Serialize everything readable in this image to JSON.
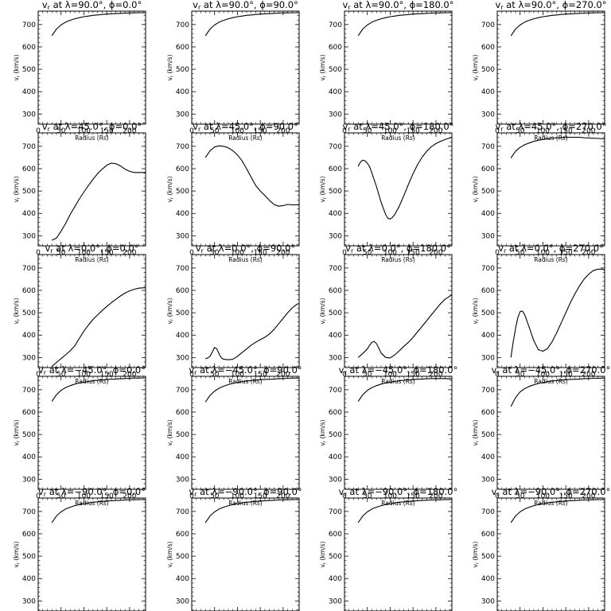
{
  "figure": {
    "xlabel": "Radius (Rs)",
    "ylabel": "v",
    "ylabel_sub": "r",
    "ylabel_unit": " (km/s)",
    "xticks": [
      0,
      50,
      100,
      150,
      200
    ],
    "yticks": [
      300,
      400,
      500,
      600,
      700
    ],
    "xlim": [
      0,
      235
    ],
    "ylim": [
      255,
      760
    ]
  },
  "chart_data": [
    {
      "type": "line",
      "title_lat": "90.0",
      "title_phi": "0.0",
      "x": [
        30,
        40,
        50,
        60,
        70,
        80,
        90,
        100,
        110,
        120,
        130,
        140,
        150,
        160,
        170,
        180,
        190,
        200,
        210,
        220,
        235
      ],
      "y": [
        650,
        680,
        698,
        711,
        719,
        726,
        731,
        735,
        738,
        741,
        743,
        745,
        747,
        748,
        749,
        750,
        751,
        752,
        752,
        753,
        753
      ]
    },
    {
      "type": "line",
      "title_lat": "90.0",
      "title_phi": "90.0",
      "x": [
        30,
        40,
        50,
        60,
        70,
        80,
        90,
        100,
        110,
        120,
        130,
        140,
        150,
        160,
        170,
        180,
        190,
        200,
        210,
        220,
        235
      ],
      "y": [
        650,
        680,
        698,
        711,
        719,
        726,
        731,
        735,
        738,
        741,
        743,
        745,
        747,
        748,
        749,
        750,
        751,
        752,
        752,
        753,
        753
      ]
    },
    {
      "type": "line",
      "title_lat": "90.0",
      "title_phi": "180.0",
      "x": [
        30,
        40,
        50,
        60,
        70,
        80,
        90,
        100,
        110,
        120,
        130,
        140,
        150,
        160,
        170,
        180,
        190,
        200,
        210,
        220,
        235
      ],
      "y": [
        650,
        680,
        698,
        711,
        719,
        726,
        731,
        735,
        738,
        741,
        743,
        745,
        747,
        748,
        749,
        750,
        751,
        752,
        752,
        753,
        753
      ]
    },
    {
      "type": "line",
      "title_lat": "90.0",
      "title_phi": "270.0",
      "x": [
        30,
        40,
        50,
        60,
        70,
        80,
        90,
        100,
        110,
        120,
        130,
        140,
        150,
        160,
        170,
        180,
        190,
        200,
        210,
        220,
        235
      ],
      "y": [
        650,
        680,
        698,
        711,
        719,
        726,
        731,
        735,
        738,
        741,
        743,
        745,
        747,
        748,
        749,
        750,
        751,
        752,
        752,
        753,
        753
      ]
    },
    {
      "type": "line",
      "title_lat": "45.0",
      "title_phi": "0.0",
      "x": [
        30,
        40,
        50,
        60,
        70,
        80,
        90,
        100,
        110,
        120,
        130,
        140,
        150,
        160,
        170,
        180,
        190,
        200,
        210,
        220,
        235
      ],
      "y": [
        280,
        290,
        320,
        355,
        395,
        430,
        465,
        495,
        525,
        552,
        578,
        598,
        615,
        625,
        622,
        612,
        598,
        588,
        583,
        583,
        583
      ]
    },
    {
      "type": "line",
      "title_lat": "45.0",
      "title_phi": "90.0",
      "x": [
        30,
        40,
        50,
        60,
        70,
        80,
        90,
        100,
        110,
        120,
        130,
        140,
        150,
        160,
        170,
        180,
        190,
        200,
        210,
        220,
        235
      ],
      "y": [
        650,
        680,
        697,
        702,
        700,
        693,
        680,
        662,
        635,
        600,
        562,
        525,
        500,
        480,
        458,
        440,
        432,
        435,
        440,
        438,
        438
      ]
    },
    {
      "type": "line",
      "title_lat": "45.0",
      "title_phi": "180.0",
      "x": [
        30,
        35,
        40,
        45,
        50,
        55,
        60,
        70,
        80,
        90,
        95,
        100,
        105,
        110,
        120,
        130,
        140,
        150,
        160,
        170,
        180,
        190,
        200,
        210,
        220,
        235
      ],
      "y": [
        610,
        630,
        638,
        635,
        625,
        608,
        580,
        520,
        450,
        395,
        378,
        375,
        382,
        395,
        432,
        480,
        530,
        578,
        618,
        652,
        678,
        698,
        712,
        722,
        730,
        740
      ]
    },
    {
      "type": "line",
      "title_lat": "45.0",
      "title_phi": "270.0",
      "x": [
        30,
        40,
        50,
        60,
        70,
        80,
        90,
        100,
        110,
        120,
        130,
        140,
        150,
        160,
        170,
        180,
        190,
        200,
        210,
        220,
        235
      ],
      "y": [
        648,
        678,
        695,
        707,
        715,
        722,
        727,
        731,
        734,
        737,
        738,
        739,
        740,
        740,
        740,
        740,
        738,
        737,
        736,
        735,
        733
      ]
    },
    {
      "type": "line",
      "title_lat": "0.0",
      "title_phi": "0.0",
      "x": [
        30,
        40,
        50,
        60,
        70,
        80,
        90,
        100,
        110,
        120,
        130,
        140,
        150,
        160,
        170,
        180,
        190,
        200,
        210,
        220,
        235
      ],
      "y": [
        260,
        278,
        295,
        312,
        330,
        352,
        385,
        418,
        445,
        470,
        490,
        510,
        528,
        545,
        560,
        575,
        588,
        598,
        605,
        610,
        612
      ]
    },
    {
      "type": "line",
      "title_lat": "0.0",
      "title_phi": "90.0",
      "x": [
        30,
        35,
        40,
        45,
        50,
        55,
        60,
        65,
        70,
        80,
        90,
        100,
        110,
        120,
        130,
        140,
        150,
        160,
        170,
        180,
        190,
        200,
        210,
        220,
        230,
        235
      ],
      "y": [
        295,
        298,
        305,
        325,
        345,
        338,
        315,
        298,
        292,
        290,
        292,
        305,
        322,
        338,
        355,
        368,
        380,
        390,
        405,
        425,
        450,
        475,
        500,
        522,
        538,
        541
      ]
    },
    {
      "type": "line",
      "title_lat": "0.0",
      "title_phi": "180.0",
      "x": [
        30,
        40,
        50,
        55,
        60,
        65,
        70,
        75,
        80,
        90,
        100,
        110,
        120,
        130,
        140,
        150,
        160,
        170,
        180,
        190,
        200,
        210,
        220,
        235
      ],
      "y": [
        300,
        318,
        338,
        355,
        368,
        372,
        362,
        342,
        320,
        300,
        298,
        312,
        330,
        350,
        368,
        390,
        415,
        440,
        465,
        490,
        515,
        540,
        560,
        580
      ]
    },
    {
      "type": "line",
      "title_lat": "0.0",
      "title_phi": "270.0",
      "x": [
        30,
        35,
        40,
        45,
        50,
        55,
        60,
        70,
        80,
        90,
        100,
        110,
        120,
        130,
        140,
        150,
        160,
        170,
        180,
        190,
        200,
        210,
        220,
        230,
        235
      ],
      "y": [
        300,
        370,
        430,
        478,
        505,
        508,
        492,
        435,
        375,
        335,
        328,
        340,
        370,
        410,
        455,
        500,
        545,
        585,
        620,
        650,
        672,
        688,
        695,
        695,
        690
      ]
    },
    {
      "type": "line",
      "title_lat": "−45.0",
      "title_phi": "0.0",
      "x": [
        30,
        40,
        50,
        60,
        70,
        80,
        90,
        100,
        110,
        120,
        130,
        140,
        150,
        160,
        170,
        180,
        190,
        200,
        210,
        220,
        235
      ],
      "y": [
        648,
        678,
        697,
        710,
        718,
        725,
        730,
        734,
        737,
        740,
        742,
        744,
        746,
        747,
        748,
        749,
        750,
        751,
        752,
        752,
        753
      ]
    },
    {
      "type": "line",
      "title_lat": "−45.0",
      "title_phi": "90.0",
      "x": [
        30,
        40,
        50,
        60,
        70,
        80,
        90,
        100,
        110,
        120,
        130,
        140,
        150,
        160,
        170,
        180,
        190,
        200,
        210,
        220,
        235
      ],
      "y": [
        645,
        675,
        694,
        707,
        716,
        723,
        728,
        733,
        736,
        739,
        741,
        743,
        745,
        746,
        747,
        748,
        749,
        750,
        751,
        752,
        752
      ]
    },
    {
      "type": "line",
      "title_lat": "−45.0",
      "title_phi": "180.0",
      "x": [
        30,
        40,
        50,
        60,
        70,
        80,
        90,
        100,
        110,
        120,
        130,
        140,
        150,
        160,
        170,
        180,
        190,
        200,
        210,
        220,
        235
      ],
      "y": [
        648,
        678,
        697,
        710,
        718,
        725,
        730,
        734,
        737,
        740,
        742,
        744,
        746,
        747,
        748,
        749,
        750,
        750,
        750,
        750,
        748
      ]
    },
    {
      "type": "line",
      "title_lat": "−45.0",
      "title_phi": "270.0",
      "x": [
        30,
        40,
        50,
        60,
        70,
        80,
        90,
        100,
        110,
        120,
        130,
        140,
        150,
        160,
        170,
        180,
        190,
        200,
        210,
        220,
        235
      ],
      "y": [
        625,
        665,
        690,
        705,
        715,
        722,
        728,
        732,
        736,
        739,
        741,
        743,
        745,
        746,
        747,
        748,
        749,
        750,
        751,
        751,
        752
      ]
    },
    {
      "type": "line",
      "title_lat": "−90.0",
      "title_phi": "0.0",
      "x": [
        30,
        40,
        50,
        60,
        70,
        80,
        90,
        100,
        110,
        120,
        130,
        140,
        150,
        160,
        170,
        180,
        190,
        200,
        210,
        220,
        235
      ],
      "y": [
        650,
        680,
        698,
        711,
        719,
        726,
        731,
        735,
        738,
        741,
        743,
        745,
        747,
        748,
        749,
        750,
        751,
        752,
        752,
        753,
        753
      ]
    },
    {
      "type": "line",
      "title_lat": "−90.0",
      "title_phi": "90.0",
      "x": [
        30,
        40,
        50,
        60,
        70,
        80,
        90,
        100,
        110,
        120,
        130,
        140,
        150,
        160,
        170,
        180,
        190,
        200,
        210,
        220,
        235
      ],
      "y": [
        650,
        680,
        698,
        711,
        719,
        726,
        731,
        735,
        738,
        741,
        743,
        745,
        747,
        748,
        749,
        750,
        751,
        752,
        752,
        753,
        753
      ]
    },
    {
      "type": "line",
      "title_lat": "−90.0",
      "title_phi": "180.0",
      "x": [
        30,
        40,
        50,
        60,
        70,
        80,
        90,
        100,
        110,
        120,
        130,
        140,
        150,
        160,
        170,
        180,
        190,
        200,
        210,
        220,
        235
      ],
      "y": [
        650,
        680,
        698,
        711,
        719,
        726,
        731,
        735,
        738,
        741,
        743,
        745,
        747,
        748,
        749,
        750,
        751,
        752,
        752,
        753,
        753
      ]
    },
    {
      "type": "line",
      "title_lat": "−90.0",
      "title_phi": "270.0",
      "x": [
        30,
        40,
        50,
        60,
        70,
        80,
        90,
        100,
        110,
        120,
        130,
        140,
        150,
        160,
        170,
        180,
        190,
        200,
        210,
        220,
        235
      ],
      "y": [
        650,
        680,
        698,
        711,
        719,
        726,
        731,
        735,
        738,
        741,
        743,
        745,
        747,
        748,
        749,
        750,
        751,
        752,
        752,
        753,
        753
      ]
    }
  ]
}
